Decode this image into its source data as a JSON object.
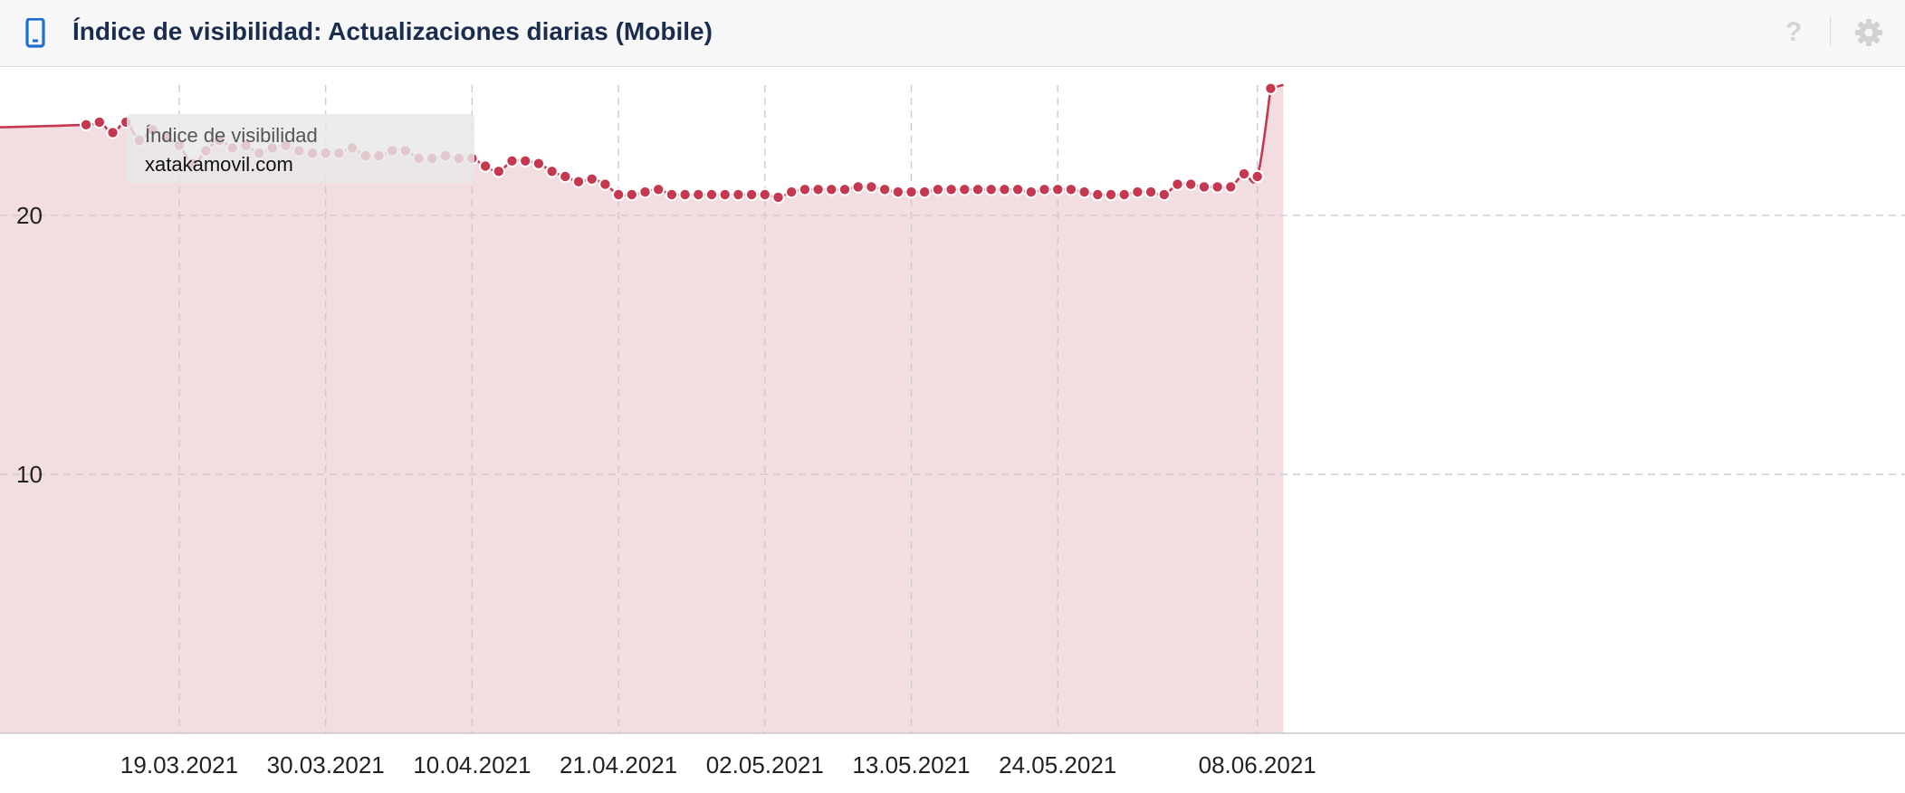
{
  "header": {
    "title": "Índice de visibilidad: Actualizaciones diarias (Mobile)",
    "icon": "mobile-phone-icon",
    "help_label": "?",
    "help_icon": "question-mark-icon",
    "settings_icon": "gear-icon"
  },
  "tooltip": {
    "label": "Índice de visibilidad",
    "domain": "xatakamovil.com"
  },
  "chart_data": {
    "type": "area",
    "title": "",
    "xlabel": "",
    "ylabel": "",
    "ylim": [
      0,
      25.1
    ],
    "yticks": [
      10,
      20
    ],
    "xtick_labels": [
      "19.03.2021",
      "30.03.2021",
      "10.04.2021",
      "21.04.2021",
      "02.05.2021",
      "13.05.2021",
      "24.05.2021",
      "08.06.2021"
    ],
    "grid": true,
    "legend": "none",
    "series_color": "#c5384f",
    "fill_color": "#f2dde1",
    "series": [
      {
        "x": [
          "12.03.2021",
          "13.03.2021",
          "14.03.2021",
          "15.03.2021",
          "16.03.2021",
          "17.03.2021",
          "18.03.2021",
          "19.03.2021",
          "20.03.2021",
          "21.03.2021",
          "22.03.2021",
          "23.03.2021",
          "24.03.2021",
          "25.03.2021",
          "26.03.2021",
          "27.03.2021",
          "28.03.2021",
          "29.03.2021",
          "30.03.2021",
          "31.03.2021",
          "01.04.2021",
          "02.04.2021",
          "03.04.2021",
          "04.04.2021",
          "05.04.2021",
          "06.04.2021",
          "07.04.2021",
          "08.04.2021",
          "09.04.2021",
          "10.04.2021",
          "11.04.2021",
          "12.04.2021",
          "13.04.2021",
          "14.04.2021",
          "15.04.2021",
          "16.04.2021",
          "17.04.2021",
          "18.04.2021",
          "19.04.2021",
          "20.04.2021",
          "21.04.2021",
          "22.04.2021",
          "23.04.2021",
          "24.04.2021",
          "25.04.2021",
          "26.04.2021",
          "27.04.2021",
          "28.04.2021",
          "29.04.2021",
          "30.04.2021",
          "01.05.2021",
          "02.05.2021",
          "03.05.2021",
          "04.05.2021",
          "05.05.2021",
          "06.05.2021",
          "07.05.2021",
          "08.05.2021",
          "09.05.2021",
          "10.05.2021",
          "11.05.2021",
          "12.05.2021",
          "13.05.2021",
          "14.05.2021",
          "15.05.2021",
          "16.05.2021",
          "17.05.2021",
          "18.05.2021",
          "19.05.2021",
          "20.05.2021",
          "21.05.2021",
          "22.05.2021",
          "23.05.2021",
          "24.05.2021",
          "25.05.2021",
          "26.05.2021",
          "27.05.2021",
          "28.05.2021",
          "29.05.2021",
          "30.05.2021",
          "31.05.2021",
          "01.06.2021",
          "02.06.2021",
          "03.06.2021",
          "04.06.2021",
          "05.06.2021",
          "06.06.2021",
          "07.06.2021",
          "08.06.2021",
          "09.06.2021"
        ],
        "values": [
          23.5,
          23.6,
          23.2,
          23.6,
          22.9,
          23.3,
          23.0,
          22.7,
          22.0,
          22.5,
          22.9,
          22.6,
          22.7,
          22.4,
          22.6,
          22.7,
          22.5,
          22.4,
          22.4,
          22.4,
          22.6,
          22.3,
          22.3,
          22.5,
          22.5,
          22.2,
          22.2,
          22.3,
          22.2,
          22.2,
          21.9,
          21.7,
          22.1,
          22.1,
          22.0,
          21.7,
          21.5,
          21.3,
          21.4,
          21.2,
          20.8,
          20.8,
          20.9,
          21.0,
          20.8,
          20.8,
          20.8,
          20.8,
          20.8,
          20.8,
          20.8,
          20.8,
          20.7,
          20.9,
          21.0,
          21.0,
          21.0,
          21.0,
          21.1,
          21.1,
          21.0,
          20.9,
          20.9,
          20.9,
          21.0,
          21.0,
          21.0,
          21.0,
          21.0,
          21.0,
          21.0,
          20.9,
          21.0,
          21.0,
          21.0,
          20.9,
          20.8,
          20.8,
          20.8,
          20.9,
          20.9,
          20.8,
          21.2,
          21.2,
          21.1,
          21.1,
          21.1,
          21.6,
          21.5,
          24.9
        ]
      }
    ]
  }
}
